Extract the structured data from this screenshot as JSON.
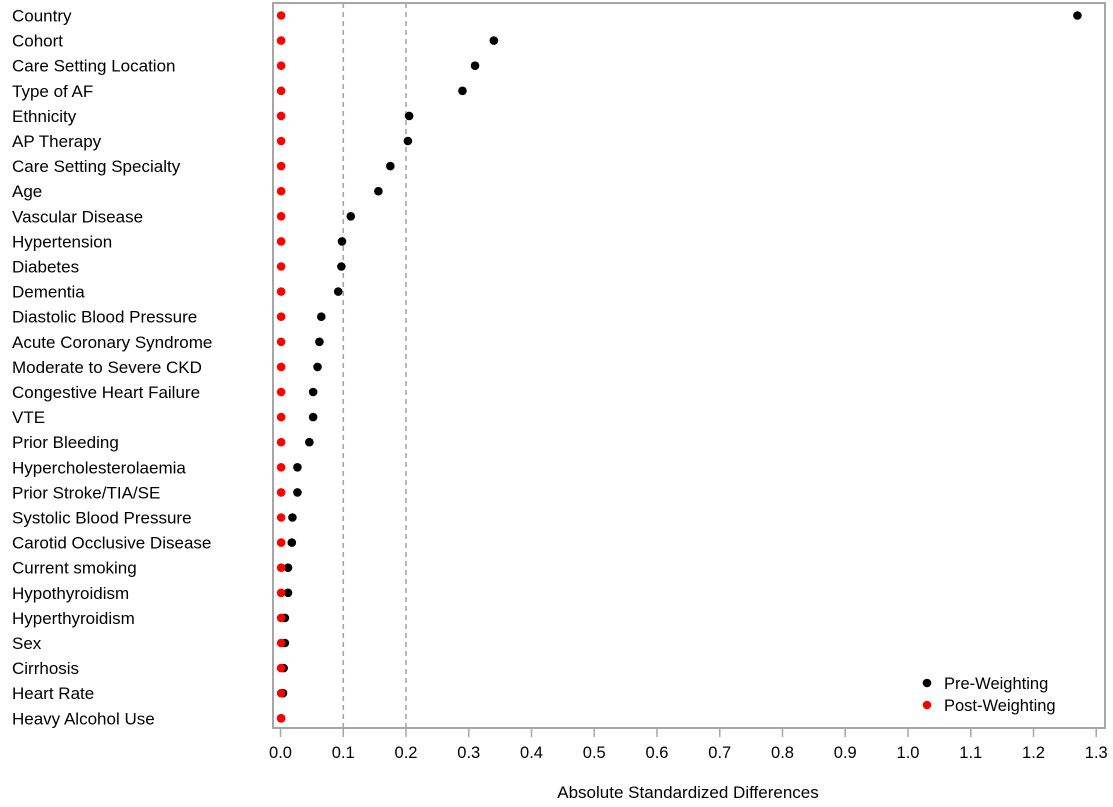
{
  "chart_data": {
    "type": "scatter",
    "title": "",
    "xlabel": "Absolute Standardized Differences",
    "ylabel": "",
    "xlim": [
      0,
      1.3
    ],
    "x_ticks": [
      "0.0",
      "0.1",
      "0.2",
      "0.3",
      "0.4",
      "0.5",
      "0.6",
      "0.7",
      "0.8",
      "0.9",
      "1.0",
      "1.1",
      "1.2",
      "1.3"
    ],
    "reference_lines": [
      0.1,
      0.2
    ],
    "grid": false,
    "legend_position": "bottom-right",
    "categories": [
      "Country",
      "Cohort",
      "Care Setting Location",
      "Type of AF",
      "Ethnicity",
      "AP Therapy",
      "Care Setting Specialty",
      "Age",
      "Vascular Disease",
      "Hypertension",
      "Diabetes",
      "Dementia",
      "Diastolic Blood Pressure",
      "Acute Coronary Syndrome",
      "Moderate to Severe CKD",
      "Congestive Heart Failure",
      "VTE",
      "Prior Bleeding",
      "Hypercholesterolaemia",
      "Prior Stroke/TIA/SE",
      "Systolic Blood Pressure",
      "Carotid Occlusive Disease",
      "Current smoking",
      "Hypothyroidism",
      "Hyperthyroidism",
      "Sex",
      "Cirrhosis",
      "Heart Rate",
      "Heavy Alcohol Use"
    ],
    "series": [
      {
        "name": "Pre-Weighting",
        "color": "#000000",
        "values": [
          1.27,
          0.34,
          0.31,
          0.29,
          0.205,
          0.203,
          0.175,
          0.156,
          0.112,
          0.098,
          0.097,
          0.092,
          0.065,
          0.062,
          0.059,
          0.052,
          0.052,
          0.046,
          0.027,
          0.027,
          0.019,
          0.018,
          0.012,
          0.012,
          0.007,
          0.007,
          0.005,
          0.004,
          0.001
        ]
      },
      {
        "name": "Post-Weighting",
        "color": "#ff0000",
        "values": [
          0.001,
          0.001,
          0.001,
          0.001,
          0.001,
          0.001,
          0.001,
          0.001,
          0.001,
          0.001,
          0.001,
          0.001,
          0.001,
          0.001,
          0.001,
          0.001,
          0.001,
          0.001,
          0.001,
          0.001,
          0.001,
          0.001,
          0.001,
          0.001,
          0.001,
          0.001,
          0.001,
          0.001,
          0.001
        ]
      }
    ]
  },
  "colors": {
    "frame": "#a6a6a6",
    "reference_line": "#a6a6a6",
    "pre": "#000000",
    "post": "#ff0000"
  }
}
